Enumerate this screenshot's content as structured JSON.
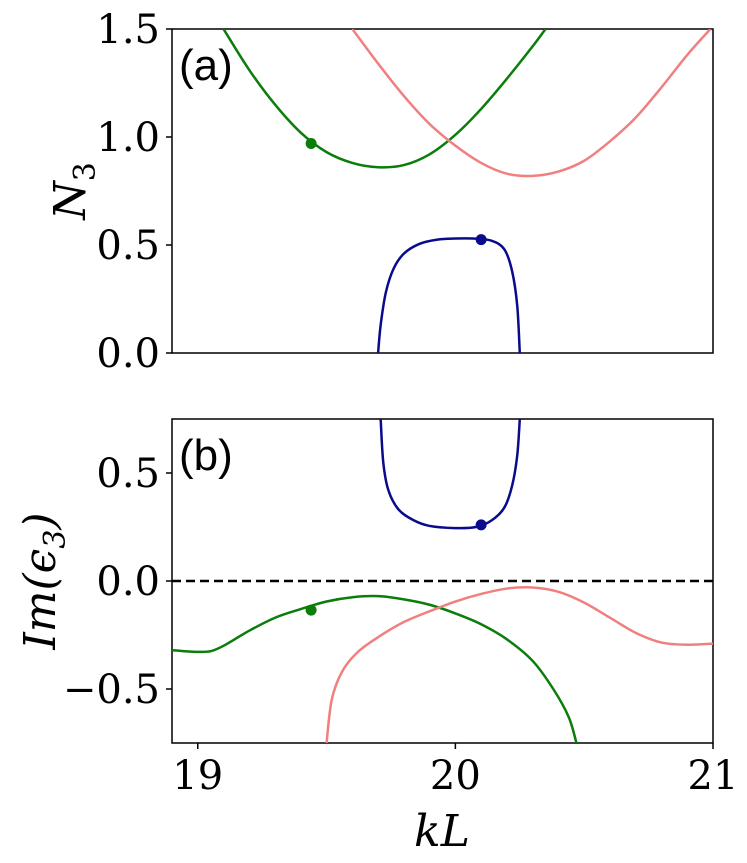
{
  "chart_data": [
    {
      "type": "line",
      "panel_label": "(a)",
      "ylabel": "N_3",
      "ylabel_main": "N",
      "ylabel_sub": "3",
      "xlim": [
        18.9,
        21.0
      ],
      "ylim": [
        0.0,
        1.5
      ],
      "yticks": [
        "0.0",
        "0.5",
        "1.0",
        "1.5"
      ],
      "ytick_values": [
        0.0,
        0.5,
        1.0,
        1.5
      ],
      "colors": {
        "green": "#0a7d0a",
        "pink": "#f08080",
        "navy": "#0a0a8c"
      },
      "series": [
        {
          "color": "green",
          "x": [
            19.1,
            19.2,
            19.3,
            19.4,
            19.5,
            19.6,
            19.7,
            19.8,
            19.9,
            20.0,
            20.1,
            20.2,
            20.3,
            20.35
          ],
          "y": [
            1.5,
            1.31,
            1.15,
            1.02,
            0.93,
            0.88,
            0.86,
            0.87,
            0.92,
            1.01,
            1.13,
            1.27,
            1.42,
            1.5
          ]
        },
        {
          "color": "pink",
          "x": [
            19.6,
            19.7,
            19.8,
            19.9,
            20.0,
            20.1,
            20.2,
            20.3,
            20.4,
            20.5,
            20.6,
            20.7,
            20.8,
            20.9,
            20.99
          ],
          "y": [
            1.5,
            1.34,
            1.19,
            1.06,
            0.96,
            0.88,
            0.83,
            0.82,
            0.84,
            0.89,
            0.98,
            1.09,
            1.23,
            1.38,
            1.5
          ]
        },
        {
          "color": "navy",
          "x": [
            19.7,
            19.71,
            19.73,
            19.76,
            19.8,
            19.86,
            19.93,
            20.0,
            20.07,
            20.14,
            20.19,
            20.22,
            20.24,
            20.25
          ],
          "y": [
            0.0,
            0.13,
            0.28,
            0.39,
            0.46,
            0.505,
            0.525,
            0.53,
            0.53,
            0.52,
            0.48,
            0.38,
            0.22,
            0.0
          ]
        }
      ],
      "markers": [
        {
          "color": "green",
          "x": 19.44,
          "y": 0.97
        },
        {
          "color": "navy",
          "x": 20.1,
          "y": 0.525
        }
      ]
    },
    {
      "type": "line",
      "panel_label": "(b)",
      "ylabel": "Im(ε_3)",
      "ylabel_main": "Im(ϵ",
      "ylabel_sub": "3",
      "ylabel_close": ")",
      "xlabel": "kL",
      "xlim": [
        18.9,
        21.0
      ],
      "ylim": [
        -0.75,
        0.75
      ],
      "xticks": [
        "19",
        "20",
        "21"
      ],
      "xtick_values": [
        19,
        20,
        21
      ],
      "yticks": [
        "−0.5",
        "0.0",
        "0.5"
      ],
      "ytick_values": [
        -0.5,
        0.0,
        0.5
      ],
      "hline": {
        "y": 0.0,
        "style": "dashed"
      },
      "colors": {
        "green": "#0a7d0a",
        "pink": "#f08080",
        "navy": "#0a0a8c"
      },
      "series": [
        {
          "color": "green",
          "x": [
            18.9,
            18.95,
            19.0,
            19.05,
            19.1,
            19.2,
            19.3,
            19.4,
            19.5,
            19.6,
            19.7,
            19.8,
            19.9,
            20.0,
            20.1,
            20.2,
            20.3,
            20.38,
            20.44,
            20.47
          ],
          "y": [
            -0.32,
            -0.325,
            -0.328,
            -0.325,
            -0.3,
            -0.23,
            -0.17,
            -0.13,
            -0.095,
            -0.075,
            -0.07,
            -0.085,
            -0.11,
            -0.15,
            -0.2,
            -0.27,
            -0.37,
            -0.5,
            -0.63,
            -0.75
          ]
        },
        {
          "color": "pink",
          "x": [
            19.5,
            19.52,
            19.56,
            19.62,
            19.7,
            19.8,
            19.9,
            20.0,
            20.1,
            20.2,
            20.3,
            20.4,
            20.5,
            20.6,
            20.7,
            20.8,
            20.9,
            21.0
          ],
          "y": [
            -0.75,
            -0.55,
            -0.42,
            -0.33,
            -0.26,
            -0.19,
            -0.14,
            -0.095,
            -0.06,
            -0.035,
            -0.03,
            -0.05,
            -0.1,
            -0.17,
            -0.24,
            -0.285,
            -0.295,
            -0.29
          ]
        },
        {
          "color": "navy",
          "x": [
            19.71,
            19.72,
            19.74,
            19.78,
            19.84,
            19.9,
            20.0,
            20.08,
            20.14,
            20.19,
            20.22,
            20.24,
            20.25
          ],
          "y": [
            0.75,
            0.55,
            0.42,
            0.33,
            0.28,
            0.255,
            0.245,
            0.25,
            0.28,
            0.34,
            0.44,
            0.58,
            0.75
          ]
        }
      ],
      "markers": [
        {
          "color": "green",
          "x": 19.44,
          "y": -0.135
        },
        {
          "color": "navy",
          "x": 20.1,
          "y": 0.26
        }
      ]
    }
  ]
}
